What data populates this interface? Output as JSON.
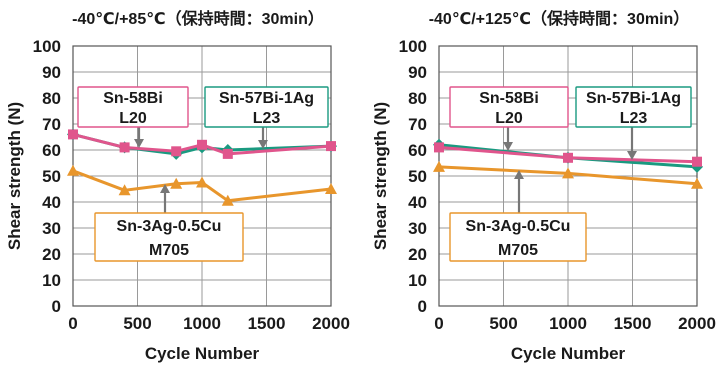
{
  "chart_data": [
    {
      "type": "line",
      "title": "-40℃/+85℃（保持時間：30min）",
      "xlabel": "Cycle Number",
      "ylabel": "Shear strength (N)",
      "xlim": [
        0,
        2000
      ],
      "ylim": [
        0,
        100
      ],
      "xticks": [
        0,
        500,
        1000,
        1500,
        2000
      ],
      "yticks": [
        0,
        10,
        20,
        30,
        40,
        50,
        60,
        70,
        80,
        90,
        100
      ],
      "grid": true,
      "series": [
        {
          "name": "Sn-58Bi L20",
          "color": "#e0558c",
          "marker": "square",
          "points": [
            [
              0,
              66
            ],
            [
              400,
              61
            ],
            [
              800,
              59.5
            ],
            [
              1000,
              62
            ],
            [
              1200,
              58.5
            ],
            [
              2000,
              61.5
            ]
          ]
        },
        {
          "name": "Sn-57Bi-1Ag L23",
          "color": "#1a9a80",
          "marker": "diamond",
          "points": [
            [
              0,
              66
            ],
            [
              400,
              61
            ],
            [
              800,
              58.5
            ],
            [
              1000,
              61
            ],
            [
              1200,
              60
            ],
            [
              2000,
              61.5
            ]
          ]
        },
        {
          "name": "Sn-3Ag-0.5Cu M705",
          "color": "#e8962c",
          "marker": "triangle",
          "points": [
            [
              0,
              52
            ],
            [
              400,
              44.5
            ],
            [
              800,
              47
            ],
            [
              1000,
              47.5
            ],
            [
              1200,
              40.5
            ],
            [
              2000,
              45
            ]
          ]
        }
      ],
      "annotations": [
        {
          "lines": [
            "Sn-58Bi",
            "L20"
          ],
          "color": "#e0558c",
          "x": 500,
          "y": 59.5
        },
        {
          "lines": [
            "Sn-57Bi-1Ag",
            "L23"
          ],
          "color": "#1a9a80",
          "x": 1480,
          "y": 61
        },
        {
          "lines": [
            "Sn-3Ag-0.5Cu",
            "M705"
          ],
          "color": "#e8962c",
          "x": 700,
          "y": 46.5
        }
      ]
    },
    {
      "type": "line",
      "title": "-40℃/+125℃（保持時間：30min）",
      "xlabel": "Cycle Number",
      "ylabel": "Shear strength (N)",
      "xlim": [
        0,
        2000
      ],
      "ylim": [
        0,
        100
      ],
      "xticks": [
        0,
        500,
        1000,
        1500,
        2000
      ],
      "yticks": [
        0,
        10,
        20,
        30,
        40,
        50,
        60,
        70,
        80,
        90,
        100
      ],
      "grid": true,
      "series": [
        {
          "name": "Sn-58Bi L20",
          "color": "#e0558c",
          "marker": "square",
          "points": [
            [
              0,
              61
            ],
            [
              1000,
              57
            ],
            [
              2000,
              55.5
            ]
          ]
        },
        {
          "name": "Sn-57Bi-1Ag L23",
          "color": "#1a9a80",
          "marker": "diamond",
          "points": [
            [
              0,
              62
            ],
            [
              1000,
              57
            ],
            [
              2000,
              53.5
            ]
          ]
        },
        {
          "name": "Sn-3Ag-0.5Cu M705",
          "color": "#e8962c",
          "marker": "triangle",
          "points": [
            [
              0,
              53.5
            ],
            [
              1000,
              51
            ],
            [
              2000,
              47
            ]
          ]
        }
      ],
      "annotations": [
        {
          "lines": [
            "Sn-58Bi",
            "L20"
          ],
          "color": "#e0558c",
          "x": 530,
          "y": 59
        },
        {
          "lines": [
            "Sn-57Bi-1Ag",
            "L23"
          ],
          "color": "#1a9a80",
          "x": 1500,
          "y": 55
        },
        {
          "lines": [
            "Sn-3Ag-0.5Cu",
            "M705"
          ],
          "color": "#e8962c",
          "x": 620,
          "y": 52
        }
      ]
    }
  ]
}
